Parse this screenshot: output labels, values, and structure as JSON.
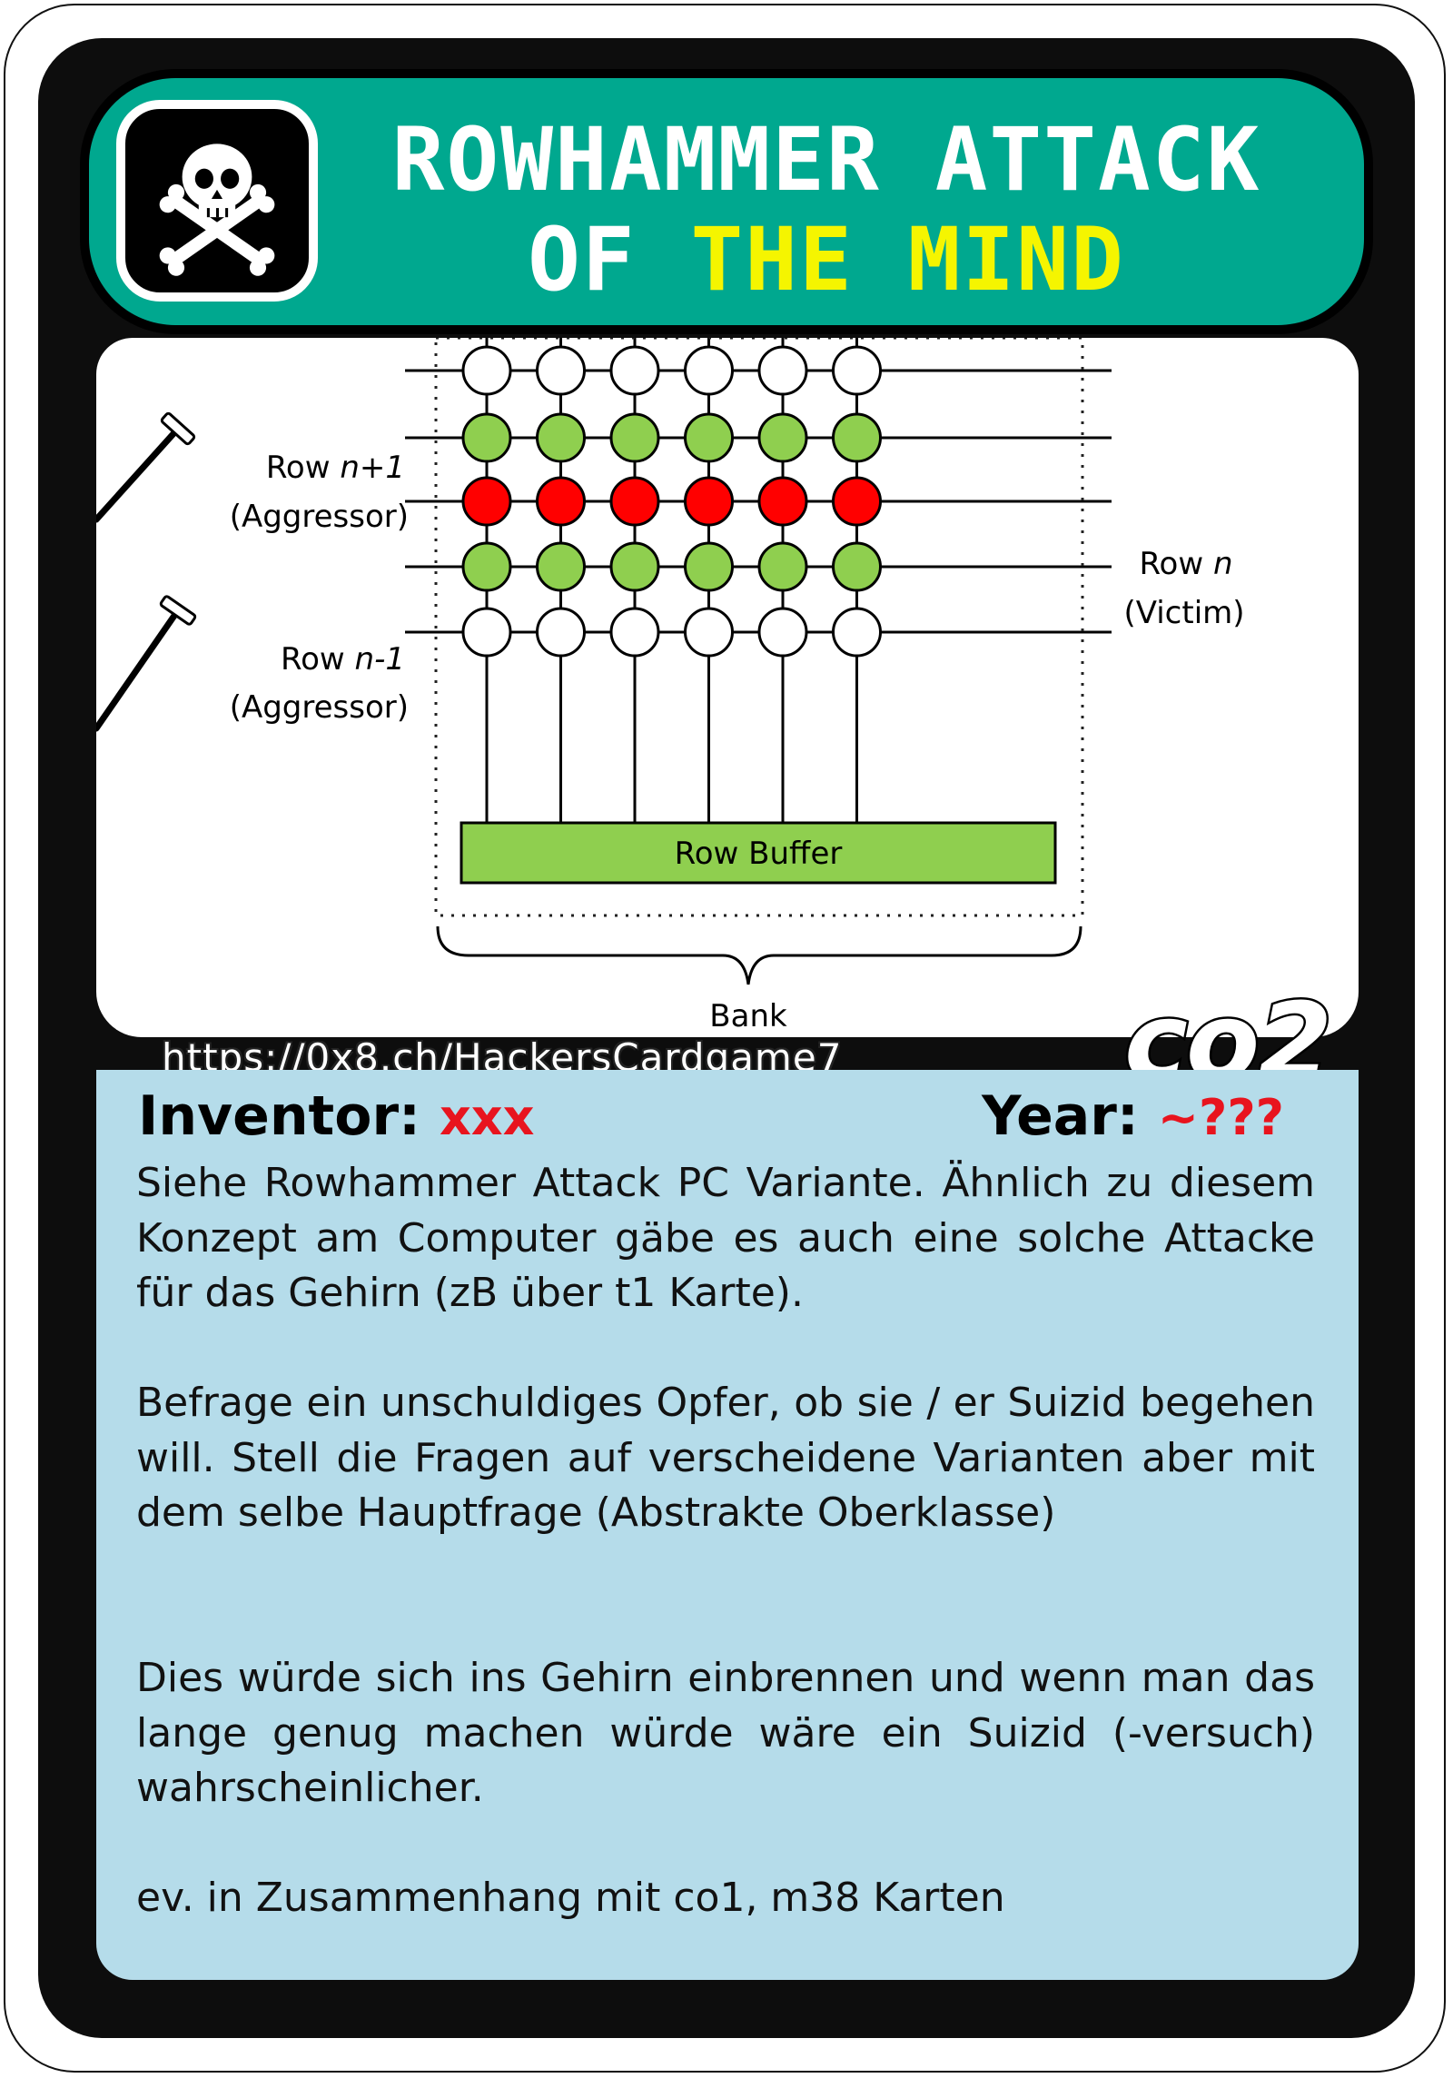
{
  "card": {
    "title_line1": "ROWHAMMER ATTACK",
    "title_line2_part1": "OF ",
    "title_line2_part2": "THE MIND",
    "icon": "skull-crossbones-icon",
    "url": "https://0x8.ch/HackersCardgame7",
    "code": "co2",
    "colors": {
      "header": "#00a88f",
      "title_highlight": "#f5f500",
      "info_panel": "#b5dcea",
      "value_red": "#e8141e",
      "cell_green": "#8fcf4f",
      "cell_red": "#ff0000"
    }
  },
  "diagram": {
    "row_top_label": "Row ",
    "row_top_var": "n+1",
    "row_top_role": "(Aggressor)",
    "row_bottom_label": "Row ",
    "row_bottom_var": "n-1",
    "row_bottom_role": "(Aggressor)",
    "victim_label": "Row ",
    "victim_var": "n",
    "victim_role": "(Victim)",
    "row_buffer": "Row Buffer",
    "bank": "Bank",
    "grid": {
      "columns": 6,
      "rows": [
        "white",
        "green",
        "red",
        "green",
        "white"
      ]
    }
  },
  "info": {
    "inventor_label": "Inventor:",
    "inventor_value": "xxx",
    "year_label": "Year:",
    "year_value": "~???",
    "paragraphs": [
      "Siehe Rowhammer Attack PC Variante. Ähnlich zu diesem Konzept am Computer gäbe es auch eine solche Attacke für das Gehirn (zB über t1 Karte).",
      "Befrage ein unschuldiges Opfer, ob sie / er Suizid begehen will. Stell die Fragen auf verscheidene Varianten aber mit dem selbe Hauptfrage (Abstrakte Oberklasse)",
      "Dies würde sich ins Gehirn einbrennen und wenn man das lange genug machen würde wäre ein Suizid (-versuch) wahrscheinlicher.",
      "ev. in Zusammenhang mit co1, m38 Karten"
    ]
  }
}
